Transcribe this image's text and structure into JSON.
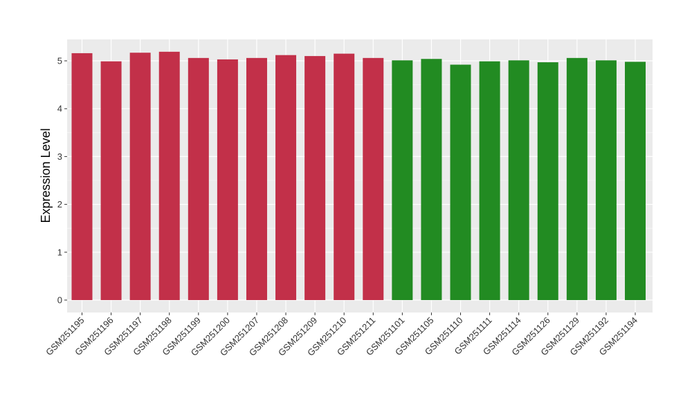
{
  "chart_data": {
    "type": "bar",
    "title": "",
    "xlabel": "",
    "ylabel": "Expression Level",
    "ylim": [
      0,
      5.4
    ],
    "yticks": [
      0,
      1,
      2,
      3,
      4,
      5
    ],
    "grid": true,
    "panel_background": "#ebebeb",
    "categories": [
      "GSM251195",
      "GSM251196",
      "GSM251197",
      "GSM251198",
      "GSM251199",
      "GSM251200",
      "GSM251207",
      "GSM251208",
      "GSM251209",
      "GSM251210",
      "GSM251211",
      "GSM251101",
      "GSM251105",
      "GSM251110",
      "GSM251111",
      "GSM251114",
      "GSM251126",
      "GSM251129",
      "GSM251192",
      "GSM251194"
    ],
    "values": [
      5.16,
      4.99,
      5.17,
      5.19,
      5.06,
      5.03,
      5.06,
      5.12,
      5.1,
      5.15,
      5.06,
      5.01,
      5.04,
      4.92,
      4.99,
      5.01,
      4.97,
      5.06,
      5.01,
      4.98
    ],
    "colors": [
      "#c23049",
      "#c23049",
      "#c23049",
      "#c23049",
      "#c23049",
      "#c23049",
      "#c23049",
      "#c23049",
      "#c23049",
      "#c23049",
      "#c23049",
      "#228b22",
      "#228b22",
      "#228b22",
      "#228b22",
      "#228b22",
      "#228b22",
      "#228b22",
      "#228b22",
      "#228b22"
    ]
  }
}
